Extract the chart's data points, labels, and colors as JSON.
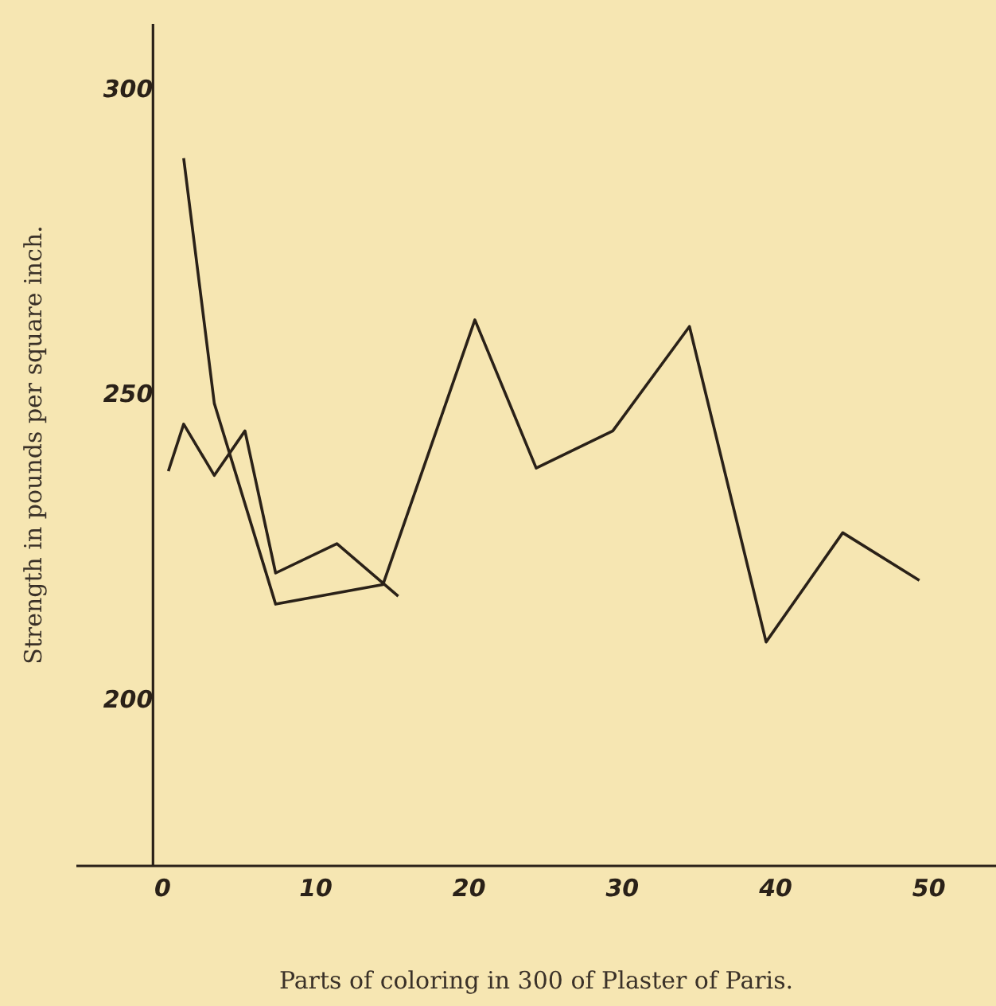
{
  "chart_data": {
    "type": "line",
    "xlabel": "Parts of coloring in 300 of Plaster of Paris.",
    "ylabel": "Strength in pounds per square inch.",
    "series": [
      {
        "color": "#2a2118",
        "x": [
          1,
          2,
          4,
          6,
          8,
          12,
          16
        ],
        "values": [
          237.7,
          245.4,
          237,
          244.3,
          221,
          225.8,
          217.2
        ]
      },
      {
        "color": "#2a2118",
        "x": [
          2,
          4,
          8,
          15,
          21,
          25,
          30,
          35,
          40,
          45,
          50
        ],
        "values": [
          289,
          248.8,
          215.9,
          219.1,
          262.5,
          238.2,
          244.3,
          261.4,
          209.7,
          227.6,
          219.8
        ]
      }
    ],
    "xlim": [
      -5,
      55
    ],
    "ylim": [
      173,
      311
    ],
    "xticks": [
      0,
      10,
      20,
      30,
      40,
      50
    ],
    "yticks": [
      200,
      250,
      300
    ],
    "grid": false,
    "legend": false,
    "marker": "none",
    "line_style": "solid"
  }
}
